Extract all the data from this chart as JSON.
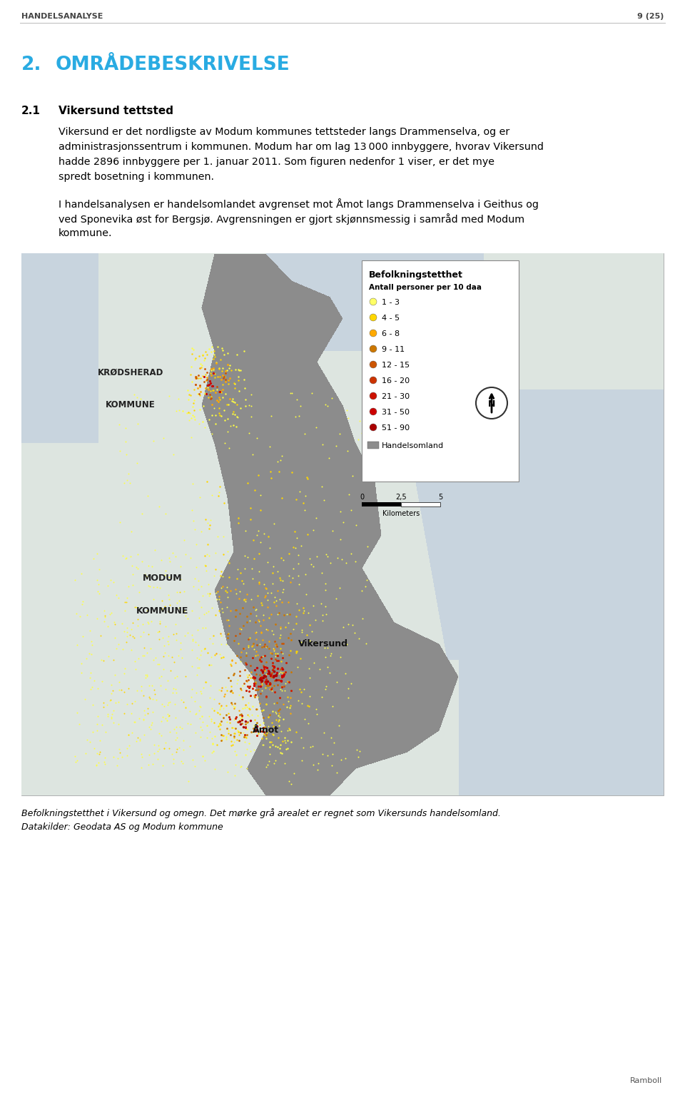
{
  "page_header_left": "HANDELSANALYSE",
  "page_header_right": "9 (25)",
  "section_number": "2.",
  "section_title": "OMRÅDEBESKRIVELSE",
  "section_title_color": "#29ABE2",
  "subsection_number": "2.1",
  "subsection_title": "Vikersund tettsted",
  "paragraph1": "Vikersund er det nordligste av Modum kommunes tettsteder langs Drammenselva, og er administrasjonssentrum i kommunen. Modum har om lag 13 000 innbyggere, hvorav Vikersund hadde 2896 innbyggere per 1. januar 2011. Som figuren nedenfor 1 viser, er det mye spredt bosetning i kommunen.",
  "paragraph2": "I handelsanalysen er handelsomlandet avgrenset mot Åmot langs Drammenselva i Geithus og ved Sponevika øst for Bergsjø. Avgrensningen er gjort skjønnsmessig i samråd med Modum kommune.",
  "caption_italic": "Befolkningstetthet i Vikersund og omegn. Det mørke grå arealet er regnet som Vikersunds handelsomland.",
  "caption_normal": "Datakilder: Geodata AS og Modum kommune",
  "footer_right": "Ramboll",
  "background_color": "#ffffff",
  "text_color": "#000000",
  "map_bg_color": "#c8d4de",
  "map_land_color": "#dde5e0",
  "handelsom_color": "#8c8c8c",
  "legend_items": [
    {
      "label": "1 - 3",
      "color": "#ffff66"
    },
    {
      "label": "4 - 5",
      "color": "#ffd700"
    },
    {
      "label": "6 - 8",
      "color": "#ffaa00"
    },
    {
      "label": "9 - 11",
      "color": "#cc7700"
    },
    {
      "label": "12 - 15",
      "color": "#cc5500"
    },
    {
      "label": "16 - 20",
      "color": "#cc3300"
    },
    {
      "label": "21 - 30",
      "color": "#cc1100"
    },
    {
      "label": "31 - 50",
      "color": "#cc0000"
    },
    {
      "label": "51 - 90",
      "color": "#aa0000"
    }
  ]
}
